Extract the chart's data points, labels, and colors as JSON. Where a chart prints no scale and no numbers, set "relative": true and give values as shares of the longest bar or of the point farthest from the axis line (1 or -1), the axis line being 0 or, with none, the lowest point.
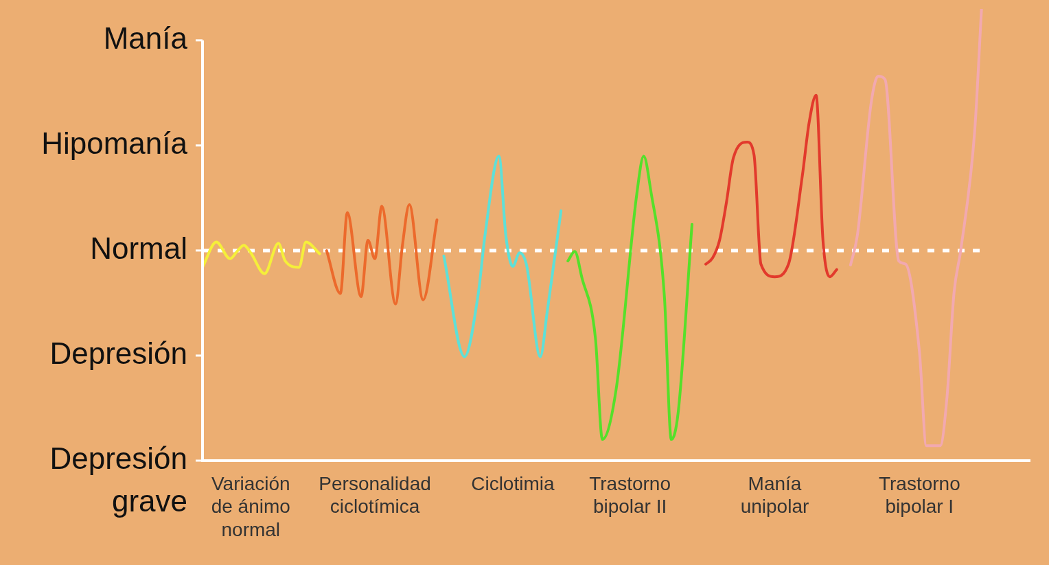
{
  "chart_data": {
    "type": "line",
    "relative": true,
    "categories": [
      null,
      null,
      null,
      null,
      null,
      null,
      null,
      "Variación de ánimo normal",
      null,
      null,
      null,
      null,
      null,
      null,
      null,
      null,
      null,
      null,
      null,
      null,
      null,
      null,
      null,
      null,
      null,
      "Personalidad ciclotímica",
      null,
      null,
      null,
      null,
      null,
      null,
      null,
      null,
      null,
      null,
      null,
      null,
      null,
      null,
      null,
      null,
      null,
      null,
      null,
      "Ciclotimia",
      null,
      null,
      null,
      null,
      null,
      null,
      null,
      null,
      null,
      null,
      null,
      null,
      null,
      null,
      null,
      null,
      "Trastorno bipolar II",
      null,
      null,
      null,
      null,
      null,
      null,
      null,
      null,
      null,
      null,
      null,
      null,
      null,
      null,
      null,
      null,
      null,
      null,
      null,
      null,
      "Manía unipolar",
      null,
      null,
      null,
      null,
      null,
      null,
      null,
      null,
      null,
      null,
      null,
      null,
      null,
      null,
      null,
      null,
      null,
      null,
      null,
      null,
      "Trastorno bipolar I",
      null,
      null,
      null,
      null,
      null,
      null,
      null,
      null,
      null,
      null,
      null,
      null,
      null,
      null,
      null,
      null
    ],
    "annotations": [
      "Manía",
      "Hipomanía",
      "Normal",
      "Depresión",
      "Depresión grave"
    ],
    "grid": false,
    "legend": false,
    "marker": "none",
    "line_style": "solid",
    "ref_lines": [
      {
        "axis": "y",
        "value": 0.465,
        "color": "#ffffff",
        "line_style": "dashed"
      }
    ],
    "series": [
      {
        "color": "#f5ef3a",
        "values": [
          0.428,
          null,
          0.484,
          null,
          0.447,
          0.463,
          0.477,
          0.46,
          null,
          0.414,
          null,
          0.481,
          0.442,
          null,
          0.428,
          0.484,
          null,
          0.458,
          null,
          null,
          null,
          null,
          null,
          null,
          null,
          null,
          null,
          null,
          null,
          null,
          null,
          null,
          null,
          null,
          null,
          null,
          null,
          null,
          null,
          null,
          null,
          null,
          null,
          null,
          null,
          null,
          null,
          null,
          null,
          null,
          null,
          null,
          null,
          null,
          null,
          null,
          null,
          null,
          null,
          null,
          null,
          null,
          null,
          null,
          null,
          null,
          null,
          null,
          null,
          null,
          null,
          null,
          null,
          null,
          null,
          null,
          null,
          null,
          null,
          null,
          null,
          null,
          null,
          null,
          null,
          null,
          null,
          null,
          null,
          null,
          null,
          null,
          null,
          null,
          null,
          null,
          null,
          null,
          null,
          null,
          null,
          null,
          null,
          null,
          null,
          null,
          null,
          null,
          null,
          null,
          null,
          null,
          null,
          null,
          null,
          null,
          null,
          null,
          null,
          null,
          null
        ]
      },
      {
        "color": "#ec6a2c",
        "values": [
          null,
          null,
          null,
          null,
          null,
          null,
          null,
          null,
          null,
          null,
          null,
          null,
          null,
          null,
          null,
          null,
          null,
          null,
          0.465,
          null,
          0.37,
          0.549,
          null,
          0.363,
          0.488,
          0.447,
          0.563,
          null,
          0.347,
          0.477,
          0.567,
          null,
          0.356,
          null,
          0.533,
          null,
          null,
          null,
          null,
          null,
          null,
          null,
          null,
          null,
          null,
          null,
          null,
          null,
          null,
          null,
          null,
          null,
          null,
          null,
          null,
          null,
          null,
          null,
          null,
          null,
          null,
          null,
          null,
          null,
          null,
          null,
          null,
          null,
          null,
          null,
          null,
          null,
          null,
          null,
          null,
          null,
          null,
          null,
          null,
          null,
          null,
          null,
          null,
          null,
          null,
          null,
          null,
          null,
          null,
          null,
          null,
          null,
          null,
          null,
          null,
          null,
          null,
          null,
          null,
          null,
          null,
          null,
          null,
          null,
          null,
          null,
          null,
          null,
          null,
          null,
          null,
          null,
          null,
          null,
          null,
          null,
          null,
          null,
          null,
          null,
          null
        ]
      },
      {
        "color": "#5ee0d8",
        "values": [
          null,
          null,
          null,
          null,
          null,
          null,
          null,
          null,
          null,
          null,
          null,
          null,
          null,
          null,
          null,
          null,
          null,
          null,
          null,
          null,
          null,
          null,
          null,
          null,
          null,
          null,
          null,
          null,
          null,
          null,
          null,
          null,
          null,
          null,
          null,
          0.453,
          null,
          null,
          0.23,
          null,
          0.37,
          0.502,
          null,
          0.674,
          0.498,
          0.43,
          0.46,
          0.433,
          null,
          0.23,
          0.33,
          null,
          0.553,
          null,
          null,
          null,
          null,
          null,
          null,
          null,
          null,
          null,
          null,
          null,
          null,
          null,
          null,
          null,
          null,
          null,
          null,
          null,
          null,
          null,
          null,
          null,
          null,
          null,
          null,
          null,
          null,
          null,
          null,
          null,
          null,
          null,
          null,
          null,
          null,
          null,
          null,
          null,
          null,
          null,
          null,
          null,
          null,
          null,
          null,
          null,
          null,
          null,
          null,
          null,
          null,
          null,
          null,
          null,
          null,
          null,
          null,
          null,
          null,
          null,
          null,
          null,
          null,
          null,
          null,
          null,
          null
        ]
      },
      {
        "color": "#55e02a",
        "values": [
          null,
          null,
          null,
          null,
          null,
          null,
          null,
          null,
          null,
          null,
          null,
          null,
          null,
          null,
          null,
          null,
          null,
          null,
          null,
          null,
          null,
          null,
          null,
          null,
          null,
          null,
          null,
          null,
          null,
          null,
          null,
          null,
          null,
          null,
          null,
          null,
          null,
          null,
          null,
          null,
          null,
          null,
          null,
          null,
          null,
          null,
          null,
          null,
          null,
          null,
          null,
          null,
          null,
          0.442,
          0.463,
          0.407,
          null,
          0.27,
          0.047,
          null,
          0.158,
          null,
          null,
          0.591,
          0.674,
          0.6,
          null,
          0.363,
          0.047,
          0.107,
          null,
          0.523,
          null,
          null,
          null,
          null,
          null,
          null,
          null,
          null,
          null,
          null,
          null,
          null,
          null,
          null,
          null,
          null,
          null,
          null,
          null,
          null,
          null,
          null,
          null,
          null,
          null,
          null,
          null,
          null,
          null,
          null,
          null,
          null,
          null,
          null,
          null,
          null,
          null,
          null,
          null,
          null,
          null,
          null,
          null,
          null,
          null,
          null,
          null,
          null,
          null
        ]
      },
      {
        "color": "#e23a2c",
        "values": [
          null,
          null,
          null,
          null,
          null,
          null,
          null,
          null,
          null,
          null,
          null,
          null,
          null,
          null,
          null,
          null,
          null,
          null,
          null,
          null,
          null,
          null,
          null,
          null,
          null,
          null,
          null,
          null,
          null,
          null,
          null,
          null,
          null,
          null,
          null,
          null,
          null,
          null,
          null,
          null,
          null,
          null,
          null,
          null,
          null,
          null,
          null,
          null,
          null,
          null,
          null,
          null,
          null,
          null,
          null,
          null,
          null,
          null,
          null,
          null,
          null,
          null,
          null,
          null,
          null,
          null,
          null,
          null,
          null,
          null,
          null,
          null,
          null,
          0.435,
          0.449,
          0.488,
          0.572,
          0.67,
          null,
          0.705,
          0.677,
          0.435,
          null,
          0.407,
          null,
          0.435,
          null,
          0.63,
          0.749,
          0.809,
          0.488,
          0.407,
          0.423,
          null,
          null,
          null,
          null,
          null,
          null,
          null,
          null,
          null,
          null,
          null,
          null,
          null,
          null,
          null,
          null,
          null,
          null,
          null,
          null,
          null,
          null,
          null,
          null,
          null,
          null,
          null,
          null
        ]
      },
      {
        "color": "#f2a9b0",
        "values": [
          null,
          null,
          null,
          null,
          null,
          null,
          null,
          null,
          null,
          null,
          null,
          null,
          null,
          null,
          null,
          null,
          null,
          null,
          null,
          null,
          null,
          null,
          null,
          null,
          null,
          null,
          null,
          null,
          null,
          null,
          null,
          null,
          null,
          null,
          null,
          null,
          null,
          null,
          null,
          null,
          null,
          null,
          null,
          null,
          null,
          null,
          null,
          null,
          null,
          null,
          null,
          null,
          null,
          null,
          null,
          null,
          null,
          null,
          null,
          null,
          null,
          null,
          null,
          null,
          null,
          null,
          null,
          null,
          null,
          null,
          null,
          null,
          null,
          null,
          null,
          null,
          null,
          null,
          null,
          null,
          null,
          null,
          null,
          null,
          null,
          null,
          null,
          null,
          null,
          null,
          null,
          null,
          null,
          null,
          0.433,
          0.5,
          null,
          0.793,
          0.851,
          0.844,
          null,
          0.442,
          0.435,
          null,
          0.24,
          0.033,
          null,
          0.033,
          0.142,
          0.37,
          0.467,
          null,
          0.728,
          1,
          null,
          null,
          null,
          null,
          null,
          null,
          null
        ]
      }
    ]
  }
}
